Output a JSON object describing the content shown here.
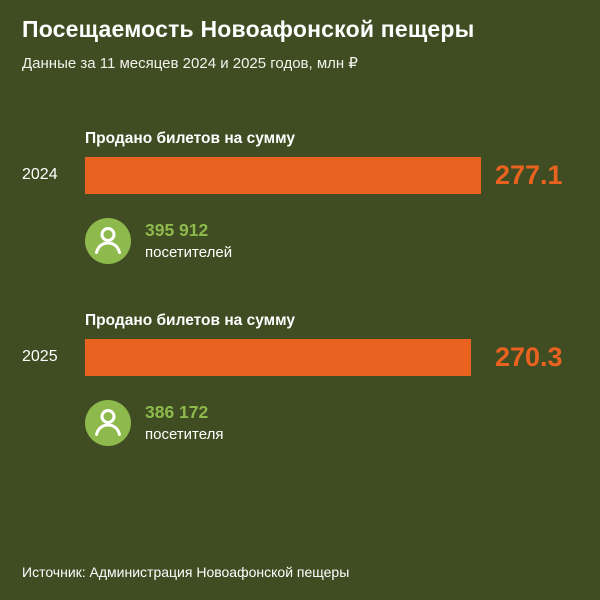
{
  "header": {
    "title": "Посещаемость Новоафонской пещеры",
    "subtitle": "Данные за 11 месяцев 2024 и 2025 годов, млн ₽"
  },
  "footer": {
    "source": "Источник: Администрация Новоафонской пещеры"
  },
  "chart_data": {
    "type": "bar",
    "orientation": "horizontal",
    "title": "Посещаемость Новоафонской пещеры",
    "subtitle": "Данные за 11 месяцев 2024 и 2025 годов, млн ₽",
    "categories": [
      "2024",
      "2025"
    ],
    "series": [
      {
        "name": "Продано билетов на сумму, млн ₽",
        "values": [
          277.1,
          270.3
        ]
      },
      {
        "name": "Посетители",
        "values": [
          395912,
          386172
        ]
      }
    ],
    "max_value": 277.1,
    "bar_color": "#ea6220",
    "accent_green": "#8eba4d",
    "background": "#404c22",
    "legend_position": "none",
    "grid": false,
    "rows": [
      {
        "year": "2024",
        "bar_label": "Продано билетов на сумму",
        "value": "277.1",
        "visitors": "395 912",
        "visitors_caption": "посетителей"
      },
      {
        "year": "2025",
        "bar_label": "Продано билетов на сумму",
        "value": "270.3",
        "visitors": "386 172",
        "visitors_caption": "посетителя"
      }
    ],
    "source": "Источник: Администрация Новоафонской пещеры"
  }
}
